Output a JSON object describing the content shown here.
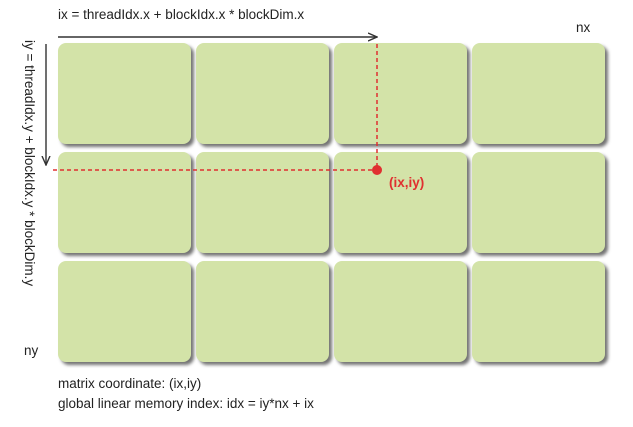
{
  "labels": {
    "x_formula": "ix = threadIdx.x + blockIdx.x * blockDim.x",
    "y_formula": "iy = threadIdx.y + blockIdx.y * blockDim.y",
    "nx": "nx",
    "ny": "ny",
    "point": "(ix,iy)"
  },
  "footer": {
    "line1": "matrix coordinate: (ix,iy)",
    "line2": "global linear memory index: idx = iy*nx + ix"
  },
  "grid": {
    "rows": 3,
    "cols": 4
  },
  "colors": {
    "cell_fill": "#d3e3a8",
    "highlight": "#e03030",
    "arrow": "#333333"
  }
}
